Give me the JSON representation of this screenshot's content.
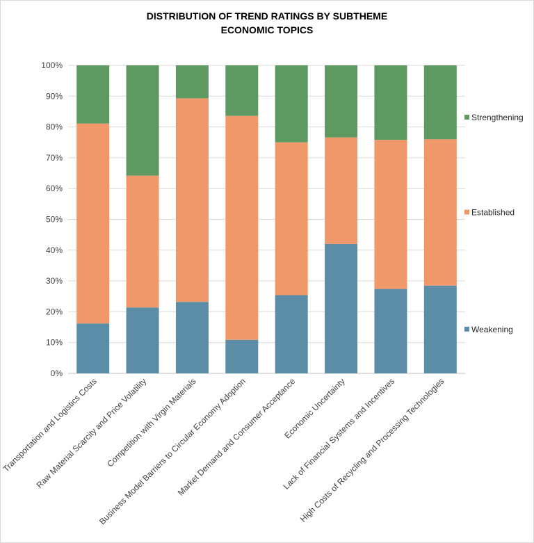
{
  "chart_data": {
    "type": "bar",
    "stacked": true,
    "normalized": true,
    "title": "DISTRIBUTION OF TREND RATINGS BY SUBTHEME",
    "subtitle": "ECONOMIC TOPICS",
    "xlabel": "",
    "ylabel": "",
    "ylim": [
      0,
      100
    ],
    "yticks": [
      "0%",
      "10%",
      "20%",
      "30%",
      "40%",
      "50%",
      "60%",
      "70%",
      "80%",
      "90%",
      "100%"
    ],
    "grid": true,
    "legend_position": "right",
    "categories": [
      "Transportation and Logistics Costs",
      "Raw Material Scarcity and Price Volatility",
      "Competition with Virgin Materials",
      "Business Model Barriers to Circular Economy Adoption",
      "Market Demand and Consumer Acceptance",
      "Economic Uncertainty",
      "Lack of Financial Systems and Incentives",
      "High Costs of Recycling and Processing Technologies"
    ],
    "series": [
      {
        "name": "Weakening",
        "color": "#5b8ea6",
        "values": [
          16.2,
          21.4,
          23.2,
          10.9,
          25.4,
          42.0,
          27.4,
          28.5
        ]
      },
      {
        "name": "Established",
        "color": "#f0986a",
        "values": [
          64.9,
          42.8,
          66.1,
          72.7,
          49.6,
          34.6,
          48.4,
          47.5
        ]
      },
      {
        "name": "Strengthening",
        "color": "#5e9962",
        "values": [
          18.9,
          35.8,
          10.7,
          16.4,
          25.0,
          23.4,
          24.2,
          24.0
        ]
      }
    ]
  }
}
